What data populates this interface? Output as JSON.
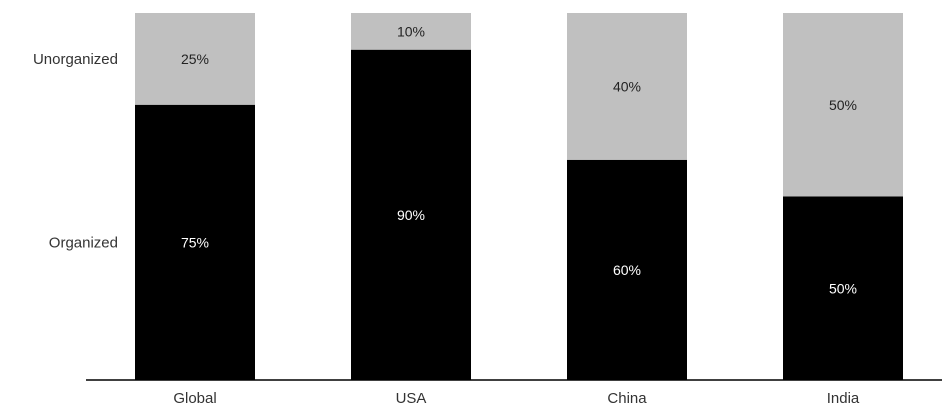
{
  "chart_data": {
    "type": "bar",
    "stacked": true,
    "normalized": true,
    "categories": [
      "Global",
      "USA",
      "China",
      "India"
    ],
    "series": [
      {
        "name": "Organized",
        "color": "#000000",
        "label_color": "#ffffff",
        "values": [
          75,
          90,
          60,
          50
        ],
        "labels": [
          "75%",
          "90%",
          "60%",
          "50%"
        ]
      },
      {
        "name": "Unorganized",
        "color": "#c0c0c0",
        "label_color": "#222222",
        "values": [
          25,
          10,
          40,
          50
        ],
        "labels": [
          "25%",
          "10%",
          "40%",
          "50%"
        ]
      }
    ],
    "ylim": [
      0,
      100
    ],
    "grid": false,
    "legend": "left",
    "title": "",
    "xlabel": "",
    "ylabel": ""
  }
}
